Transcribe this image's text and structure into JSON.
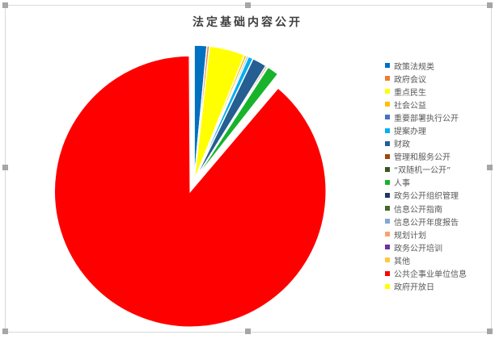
{
  "chart_data": {
    "type": "pie",
    "title": "法定基础内容公开",
    "legend_position": "right",
    "categories": [
      "政策法规类",
      "政府会议",
      "重点民生",
      "社会公益",
      "重要部署执行公开",
      "提案办理",
      "财政",
      "管理和服务公开",
      "“双随机一公开”",
      "人事",
      "政务公开组织管理",
      "信息公开指南",
      "信息公开年度报告",
      "规划计划",
      "政务公开培训",
      "其他",
      "公共企事业单位信息",
      "政府开放日"
    ],
    "values": [
      15,
      3,
      42,
      3,
      2,
      6,
      17,
      2,
      1,
      14,
      1,
      1,
      1,
      1,
      1,
      1,
      880,
      1
    ],
    "colors": [
      "#0070c0",
      "#ed7d31",
      "#ffff00",
      "#ffc000",
      "#4472c4",
      "#00b0f0",
      "#255e91",
      "#9e480e",
      "#375623",
      "#17b32b",
      "#203864",
      "#43682b",
      "#7fa9d6",
      "#f4a46f",
      "#7030a0",
      "#ffc83d",
      "#ff0000",
      "#ffff00"
    ],
    "exploded": "公共企事业单位信息"
  }
}
